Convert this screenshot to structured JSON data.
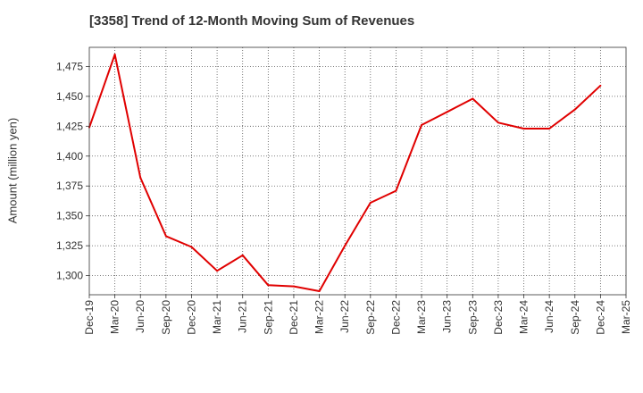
{
  "chart_data": {
    "type": "line",
    "title": "[3358]  Trend of 12-Month Moving Sum of Revenues",
    "xlabel": "",
    "ylabel": "Amount (million yen)",
    "categories": [
      "Dec-19",
      "Mar-20",
      "Jun-20",
      "Sep-20",
      "Dec-20",
      "Mar-21",
      "Jun-21",
      "Sep-21",
      "Dec-21",
      "Mar-22",
      "Jun-22",
      "Sep-22",
      "Dec-22",
      "Mar-23",
      "Jun-23",
      "Sep-23",
      "Dec-23",
      "Mar-24",
      "Jun-24",
      "Sep-24",
      "Dec-24",
      "Mar-25"
    ],
    "yticks": [
      1300,
      1325,
      1350,
      1375,
      1400,
      1425,
      1450,
      1475
    ],
    "ytick_labels": [
      "1,300",
      "1,325",
      "1,350",
      "1,375",
      "1,400",
      "1,425",
      "1,450",
      "1,475"
    ],
    "ylim": [
      1284,
      1491
    ],
    "grid": true,
    "series": [
      {
        "color": "#e00000",
        "values": [
          1424,
          1485,
          1382,
          1333,
          1324,
          1304,
          1317,
          1292,
          1291,
          1287,
          1325,
          1361,
          1371,
          1426,
          1437,
          1448,
          1428,
          1423,
          1423,
          1439,
          1459,
          null
        ]
      }
    ]
  }
}
